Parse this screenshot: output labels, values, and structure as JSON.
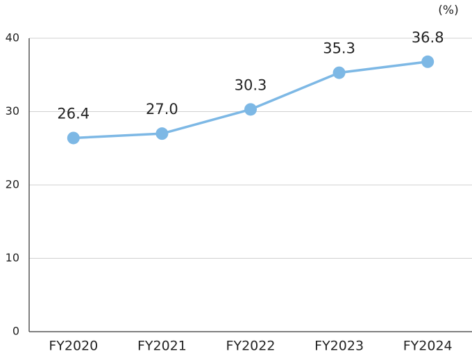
{
  "chart_data": {
    "type": "line",
    "unit_label": "(%)",
    "categories": [
      "FY2020",
      "FY2021",
      "FY2022",
      "FY2023",
      "FY2024"
    ],
    "series": [
      {
        "color": "#7db8e5",
        "values": [
          26.4,
          27.0,
          30.3,
          35.3,
          36.8
        ],
        "value_labels": [
          "26.4",
          "27.0",
          "30.3",
          "35.3",
          "36.8"
        ]
      }
    ],
    "ylim": [
      0,
      40
    ],
    "yticks": [
      0,
      10,
      20,
      30,
      40
    ],
    "grid": true
  }
}
